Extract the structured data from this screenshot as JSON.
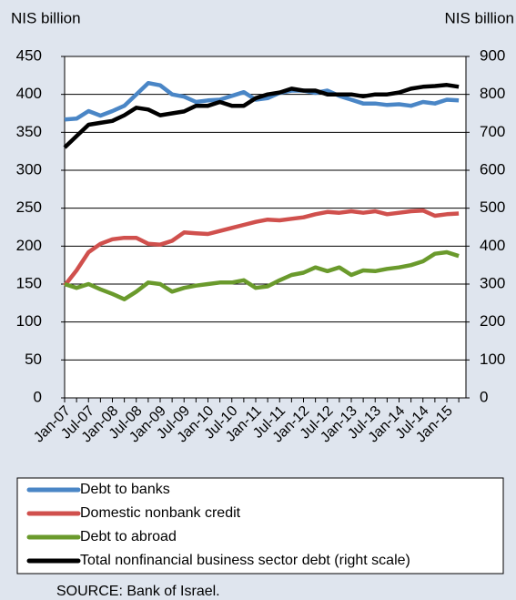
{
  "chart_data": {
    "type": "line",
    "y_label": "NIS billion",
    "y2_label": "NIS billion",
    "source": "SOURCE: Bank of Israel.",
    "categories": [
      "Jan-07",
      null,
      "Jul-07",
      null,
      "Jan-08",
      null,
      "Jul-08",
      null,
      "Jan-09",
      null,
      "Jul-09",
      null,
      "Jan-10",
      null,
      "Jul-10",
      null,
      "Jan-11",
      null,
      "Jul-11",
      null,
      "Jan-12",
      null,
      "Jul-12",
      null,
      "Jan-13",
      null,
      "Jul-13",
      null,
      "Jan-14",
      null,
      "Jul-14",
      null,
      "Jan-15",
      null
    ],
    "series": [
      {
        "name": "Debt to banks",
        "color": "#4a86c6",
        "values": [
          367,
          368,
          378,
          372,
          378,
          385,
          400,
          415,
          412,
          400,
          397,
          390,
          392,
          393,
          398,
          403,
          393,
          395,
          402,
          405,
          405,
          402,
          405,
          398,
          393,
          388,
          388,
          386,
          387,
          385,
          390,
          388,
          393,
          392
        ]
      },
      {
        "name": "Domestic nonbank credit",
        "color": "#d0504d",
        "values": [
          148,
          168,
          192,
          203,
          209,
          211,
          211,
          203,
          202,
          207,
          218,
          217,
          216,
          220,
          224,
          228,
          232,
          235,
          234,
          236,
          238,
          242,
          245,
          244,
          246,
          244,
          246,
          242,
          244,
          246,
          247,
          240,
          242,
          243
        ]
      },
      {
        "name": "Debt to abroad",
        "color": "#6a9a2c",
        "values": [
          150,
          145,
          150,
          143,
          137,
          130,
          140,
          152,
          150,
          140,
          145,
          148,
          150,
          152,
          152,
          155,
          145,
          147,
          155,
          162,
          165,
          172,
          167,
          172,
          162,
          168,
          167,
          170,
          172,
          175,
          180,
          190,
          192,
          187
        ]
      },
      {
        "name": "Total nonfinancial business sector debt (right scale)",
        "color": "#000000",
        "axis": "y2",
        "values": [
          660,
          690,
          720,
          725,
          730,
          745,
          765,
          760,
          745,
          750,
          755,
          770,
          770,
          780,
          770,
          770,
          790,
          800,
          805,
          815,
          810,
          810,
          800,
          800,
          800,
          795,
          800,
          800,
          805,
          815,
          820,
          822,
          825,
          820
        ]
      }
    ],
    "ylim": [
      0,
      450
    ],
    "yticks": [
      0,
      50,
      100,
      150,
      200,
      250,
      300,
      350,
      400,
      450
    ],
    "y2lim": [
      0,
      900
    ],
    "y2ticks": [
      0,
      100,
      200,
      300,
      400,
      500,
      600,
      700,
      800,
      900
    ],
    "grid": true
  }
}
